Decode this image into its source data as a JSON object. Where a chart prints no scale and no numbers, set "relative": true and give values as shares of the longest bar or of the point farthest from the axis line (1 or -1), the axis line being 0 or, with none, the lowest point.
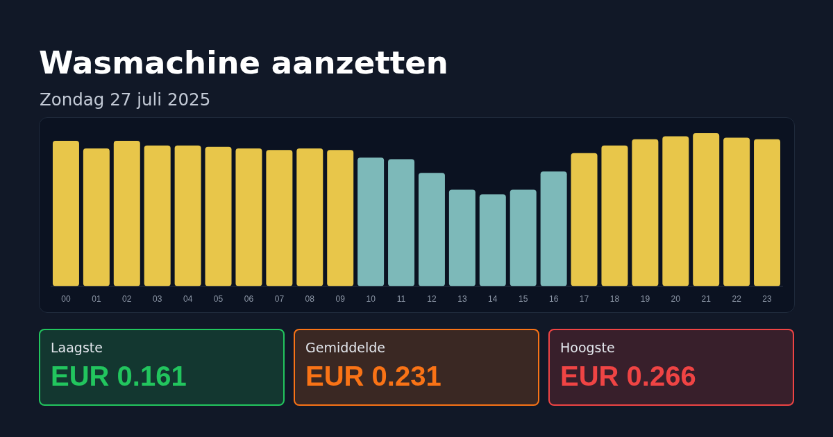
{
  "chart_data": [
    {
      "type": "bar",
      "title": "Wasmachine aanzetten",
      "subtitle": "Zondag 27 juli 2025",
      "categories": [
        "00",
        "01",
        "02",
        "03",
        "04",
        "05",
        "06",
        "07",
        "08",
        "09",
        "10",
        "11",
        "12",
        "13",
        "14",
        "15",
        "16",
        "17",
        "18",
        "19",
        "20",
        "21",
        "22",
        "23"
      ],
      "values": [
        0.95,
        0.9,
        0.95,
        0.92,
        0.92,
        0.91,
        0.9,
        0.89,
        0.9,
        0.89,
        0.84,
        0.83,
        0.74,
        0.63,
        0.6,
        0.63,
        0.75,
        0.87,
        0.92,
        0.96,
        0.98,
        1,
        0.97,
        0.96
      ],
      "colors": [
        "#e8c64a",
        "#e8c64a",
        "#e8c64a",
        "#e8c64a",
        "#e8c64a",
        "#e8c64a",
        "#e8c64a",
        "#e8c64a",
        "#e8c64a",
        "#e8c64a",
        "#7db9b9",
        "#7db9b9",
        "#7db9b9",
        "#7db9b9",
        "#7db9b9",
        "#7db9b9",
        "#7db9b9",
        "#e8c64a",
        "#e8c64a",
        "#e8c64a",
        "#e8c64a",
        "#e8c64a",
        "#e8c64a",
        "#e8c64a"
      ],
      "relative": true
    },
    {
      "type": "other",
      "title": "Laagste",
      "annotations": [
        "EUR 0.161"
      ],
      "color": "#22c55e"
    },
    {
      "type": "other",
      "title": "Gemiddelde",
      "annotations": [
        "EUR 0.231"
      ],
      "color": "#f97316"
    },
    {
      "type": "other",
      "title": "Hoogste",
      "annotations": [
        "EUR 0.266"
      ],
      "color": "#ef4444"
    }
  ]
}
